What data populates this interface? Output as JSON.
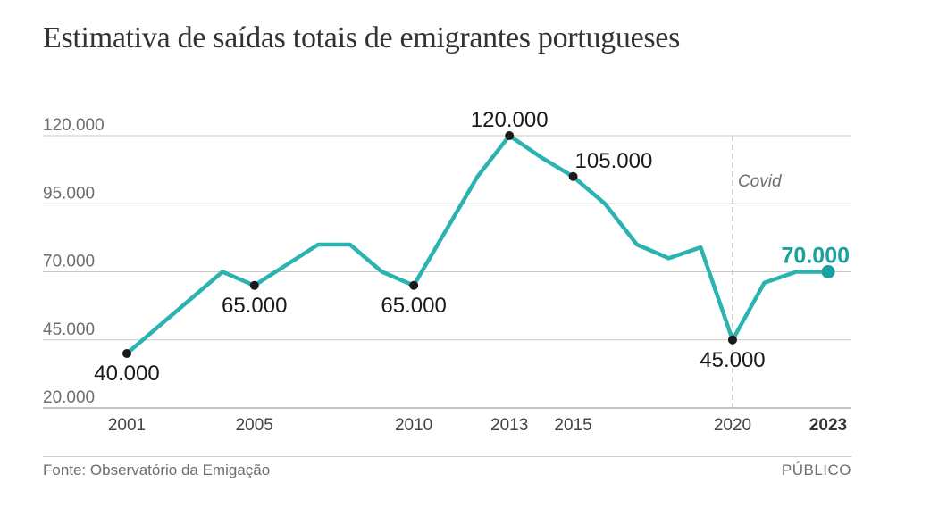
{
  "title": "Estimativa de saídas totais de emigrantes portugueses",
  "source": "Fonte: Observatório da Emigação",
  "brand": "PÚBLICO",
  "colors": {
    "line": "#2bb3b1",
    "highlight": "#1aa09e",
    "point": "#1a1a1a",
    "grid": "#c8c8c8",
    "axis_text": "#6e6e6e"
  },
  "chart_data": {
    "type": "line",
    "x": [
      2001,
      2002,
      2003,
      2004,
      2005,
      2006,
      2007,
      2008,
      2009,
      2010,
      2011,
      2012,
      2013,
      2014,
      2015,
      2016,
      2017,
      2018,
      2019,
      2020,
      2021,
      2022,
      2023
    ],
    "values": [
      40000,
      50000,
      60000,
      70000,
      65000,
      72500,
      80000,
      80000,
      70000,
      65000,
      85000,
      105000,
      120000,
      112000,
      105000,
      95000,
      80000,
      75000,
      79000,
      45000,
      66000,
      70000,
      70000
    ],
    "ylim": [
      20000,
      120000
    ],
    "yticks": [
      "120.000",
      "95.000",
      "70.000",
      "45.000",
      "20.000"
    ],
    "ytick_values": [
      120000,
      95000,
      70000,
      45000,
      20000
    ],
    "xticks": [
      "2001",
      "2005",
      "2010",
      "2013",
      "2015",
      "2020",
      "2023"
    ],
    "xtick_values": [
      2001,
      2005,
      2010,
      2013,
      2015,
      2020,
      2023
    ],
    "bold_xtick": "2023",
    "annotated_points": [
      {
        "x": 2001,
        "label": "40.000",
        "position": "below"
      },
      {
        "x": 2005,
        "label": "65.000",
        "position": "below"
      },
      {
        "x": 2010,
        "label": "65.000",
        "position": "below"
      },
      {
        "x": 2013,
        "label": "120.000",
        "position": "above"
      },
      {
        "x": 2015,
        "label": "105.000",
        "position": "right"
      },
      {
        "x": 2020,
        "label": "45.000",
        "position": "below"
      }
    ],
    "highlight": {
      "x": 2023,
      "label": "70.000"
    },
    "event_marker": {
      "x": 2020,
      "label": "Covid"
    },
    "grid": true
  }
}
